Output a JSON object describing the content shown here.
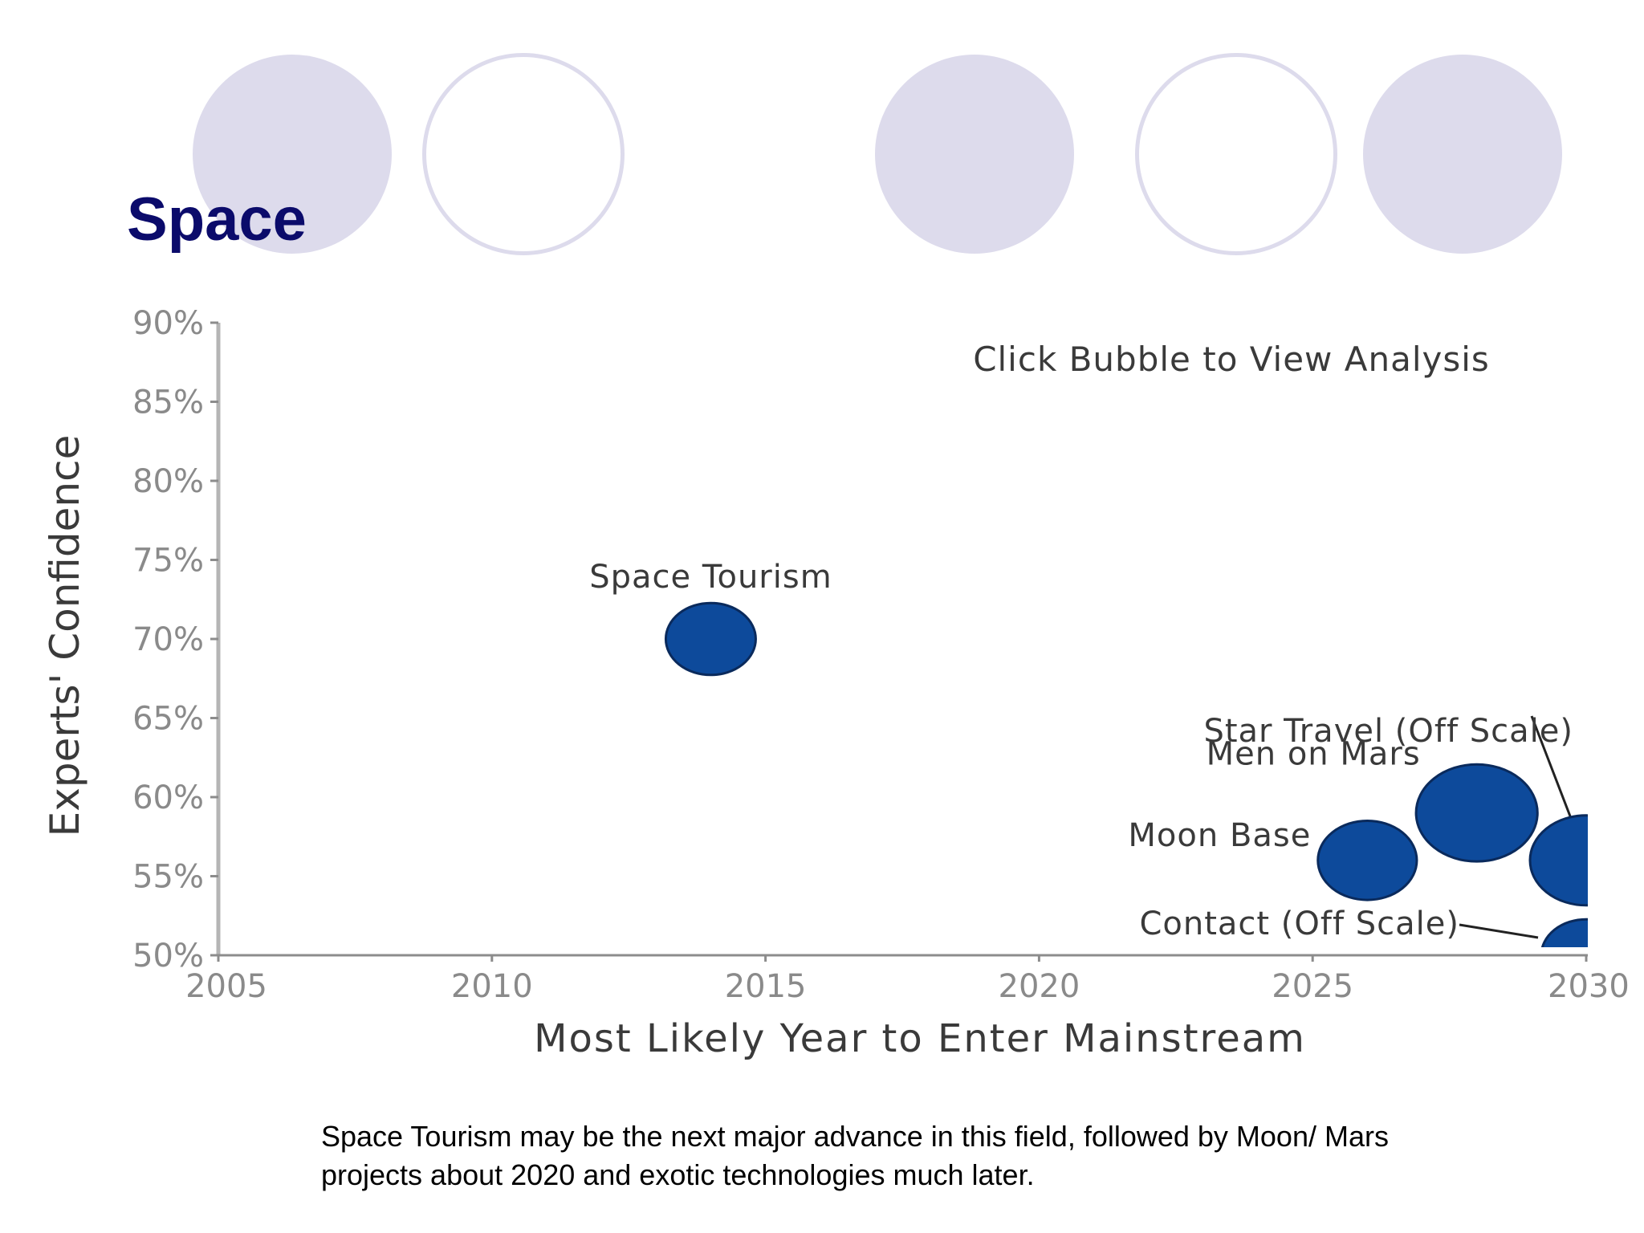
{
  "slide": {
    "title": "Space",
    "caption": "Space Tourism may be the next major advance in this field, followed by Moon/ Mars projects about 2020 and exotic technologies much later."
  },
  "decoration": {
    "filled_color": "#dddbec",
    "outline_color": "#dddbec"
  },
  "chart_data": {
    "type": "scatter",
    "title": "",
    "annotation": "Click Bubble to View Analysis",
    "xlabel": "Most Likely Year to Enter Mainstream",
    "ylabel": "Experts' Confidence",
    "xlim": [
      2005,
      2030
    ],
    "ylim": [
      50,
      90
    ],
    "x_ticks": [
      "2005",
      "2010",
      "2015",
      "2020",
      "2025",
      "2030"
    ],
    "y_ticks": [
      "50%",
      "55%",
      "60%",
      "65%",
      "70%",
      "75%",
      "80%",
      "85%",
      "90%"
    ],
    "grid": false,
    "bubble_color": "#0d4a9b",
    "points": [
      {
        "label": "Space Tourism",
        "x": 2014,
        "y": 70,
        "size": 1.0
      },
      {
        "label": "Moon Base",
        "x": 2026,
        "y": 56,
        "size": 1.1
      },
      {
        "label": "Men on Mars",
        "x": 2028,
        "y": 59,
        "size": 1.35
      },
      {
        "label": "Star Travel (Off Scale)",
        "x": 2030,
        "y": 56,
        "size": 1.25
      },
      {
        "label": "Contact (Off Scale)",
        "x": 2030,
        "y": 50,
        "size": 1.0
      }
    ]
  }
}
